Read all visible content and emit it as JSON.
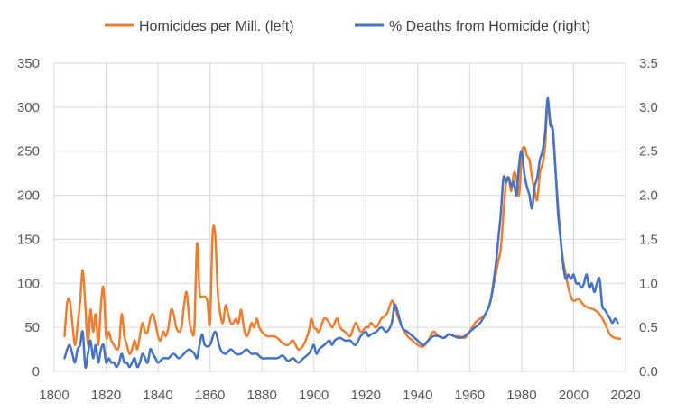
{
  "chart_data": {
    "type": "line",
    "title": "",
    "xlabel": "",
    "ylabel": "",
    "y2label": "",
    "xlim": [
      1800,
      2020
    ],
    "ylim": [
      0,
      350
    ],
    "y2lim": [
      0,
      3.5
    ],
    "grid": "vertical and horizontal",
    "legend_position": "top",
    "x_ticks": [
      "1800",
      "1820",
      "1840",
      "1860",
      "1880",
      "1900",
      "1920",
      "1940",
      "1960",
      "1980",
      "2000",
      "2020"
    ],
    "y_ticks_left": [
      "0",
      "50",
      "100",
      "150",
      "200",
      "250",
      "300",
      "350"
    ],
    "y_ticks_right": [
      "0.0",
      "0.5",
      "1.0",
      "1.5",
      "2.0",
      "2.5",
      "3.0",
      "3.5"
    ],
    "colors": {
      "homicides": "#ed7d31",
      "deaths": "#4472c4",
      "grid": "#d9d9d9",
      "axis_text": "#595959"
    },
    "series": [
      {
        "name": "Homicides per Mill. (left)",
        "axis": "left",
        "color": "#ed7d31",
        "x": [
          1804,
          1805,
          1806,
          1807,
          1808,
          1809,
          1810,
          1811,
          1812,
          1813,
          1814,
          1815,
          1816,
          1817,
          1818,
          1819,
          1820,
          1821,
          1822,
          1823,
          1824,
          1825,
          1826,
          1827,
          1828,
          1829,
          1830,
          1831,
          1832,
          1833,
          1834,
          1835,
          1836,
          1837,
          1838,
          1839,
          1840,
          1841,
          1842,
          1843,
          1844,
          1845,
          1846,
          1847,
          1848,
          1849,
          1850,
          1851,
          1852,
          1853,
          1854,
          1855,
          1856,
          1857,
          1858,
          1859,
          1860,
          1861,
          1862,
          1863,
          1864,
          1865,
          1866,
          1867,
          1868,
          1869,
          1870,
          1871,
          1872,
          1873,
          1874,
          1875,
          1876,
          1877,
          1878,
          1879,
          1880,
          1882,
          1884,
          1886,
          1888,
          1890,
          1892,
          1894,
          1896,
          1898,
          1899,
          1900,
          1901,
          1902,
          1904,
          1906,
          1907,
          1908,
          1909,
          1910,
          1912,
          1914,
          1916,
          1918,
          1920,
          1921,
          1922,
          1924,
          1926,
          1928,
          1930,
          1931,
          1932,
          1934,
          1936,
          1938,
          1940,
          1942,
          1944,
          1946,
          1948,
          1950,
          1952,
          1954,
          1956,
          1958,
          1960,
          1962,
          1964,
          1966,
          1968,
          1970,
          1971,
          1972,
          1973,
          1974,
          1975,
          1976,
          1977,
          1978,
          1979,
          1980,
          1981,
          1982,
          1983,
          1984,
          1985,
          1986,
          1987,
          1988,
          1989,
          1990,
          1991,
          1992,
          1993,
          1994,
          1995,
          1996,
          1997,
          1998,
          1999,
          2000,
          2002,
          2004,
          2006,
          2008,
          2010,
          2012,
          2014,
          2016,
          2018
        ],
        "values": [
          40,
          78,
          80,
          55,
          30,
          52,
          80,
          115,
          75,
          30,
          70,
          45,
          65,
          30,
          75,
          95,
          40,
          45,
          35,
          30,
          25,
          30,
          65,
          40,
          30,
          20,
          25,
          35,
          25,
          40,
          55,
          45,
          45,
          60,
          65,
          55,
          40,
          35,
          45,
          40,
          50,
          70,
          65,
          50,
          45,
          50,
          75,
          90,
          60,
          45,
          50,
          145,
          90,
          85,
          85,
          80,
          55,
          155,
          155,
          90,
          65,
          55,
          75,
          65,
          55,
          55,
          60,
          55,
          70,
          50,
          40,
          45,
          55,
          50,
          60,
          50,
          45,
          40,
          40,
          38,
          32,
          30,
          35,
          25,
          30,
          45,
          60,
          50,
          48,
          45,
          60,
          55,
          50,
          55,
          60,
          50,
          45,
          40,
          55,
          45,
          50,
          50,
          55,
          50,
          60,
          65,
          80,
          75,
          65,
          50,
          40,
          35,
          30,
          28,
          35,
          45,
          40,
          38,
          42,
          40,
          40,
          38,
          45,
          55,
          60,
          65,
          80,
          110,
          125,
          140,
          180,
          215,
          220,
          205,
          225,
          220,
          200,
          245,
          255,
          245,
          240,
          220,
          205,
          195,
          225,
          235,
          255,
          305,
          285,
          270,
          230,
          190,
          150,
          125,
          110,
          95,
          85,
          80,
          82,
          75,
          72,
          70,
          65,
          55,
          42,
          38,
          37
        ]
      },
      {
        "name": "% Deaths from Homicide (right)",
        "axis": "right",
        "color": "#4472c4",
        "x": [
          1804,
          1805,
          1806,
          1807,
          1808,
          1809,
          1810,
          1811,
          1812,
          1813,
          1814,
          1815,
          1816,
          1817,
          1818,
          1819,
          1820,
          1821,
          1822,
          1823,
          1824,
          1825,
          1826,
          1827,
          1828,
          1829,
          1830,
          1831,
          1832,
          1833,
          1834,
          1835,
          1836,
          1837,
          1838,
          1839,
          1840,
          1842,
          1844,
          1846,
          1848,
          1850,
          1852,
          1854,
          1855,
          1856,
          1857,
          1858,
          1860,
          1862,
          1864,
          1866,
          1868,
          1870,
          1872,
          1874,
          1876,
          1878,
          1880,
          1882,
          1884,
          1886,
          1888,
          1890,
          1892,
          1894,
          1896,
          1898,
          1899,
          1900,
          1901,
          1902,
          1904,
          1906,
          1907,
          1908,
          1910,
          1912,
          1914,
          1916,
          1918,
          1920,
          1921,
          1922,
          1924,
          1926,
          1928,
          1930,
          1931,
          1932,
          1934,
          1936,
          1938,
          1940,
          1942,
          1944,
          1946,
          1948,
          1950,
          1952,
          1954,
          1956,
          1958,
          1960,
          1962,
          1964,
          1966,
          1968,
          1970,
          1971,
          1972,
          1973,
          1974,
          1975,
          1976,
          1977,
          1978,
          1979,
          1980,
          1981,
          1982,
          1983,
          1984,
          1985,
          1986,
          1987,
          1988,
          1989,
          1990,
          1991,
          1992,
          1993,
          1994,
          1995,
          1996,
          1997,
          1998,
          1999,
          2000,
          2001,
          2002,
          2003,
          2004,
          2005,
          2006,
          2007,
          2008,
          2009,
          2010,
          2011,
          2012,
          2013,
          2014,
          2015,
          2016,
          2017
        ],
        "values": [
          0.15,
          0.25,
          0.3,
          0.2,
          0.1,
          0.25,
          0.3,
          0.45,
          0.05,
          0.2,
          0.35,
          0.15,
          0.3,
          0.1,
          0.25,
          0.3,
          0.1,
          0.15,
          0.1,
          0.1,
          0.05,
          0.1,
          0.2,
          0.1,
          0.1,
          0.05,
          0.1,
          0.15,
          0.05,
          0.1,
          0.2,
          0.15,
          0.1,
          0.25,
          0.2,
          0.15,
          0.1,
          0.15,
          0.15,
          0.2,
          0.15,
          0.2,
          0.25,
          0.2,
          0.15,
          0.3,
          0.42,
          0.3,
          0.3,
          0.45,
          0.25,
          0.2,
          0.25,
          0.2,
          0.2,
          0.25,
          0.2,
          0.2,
          0.15,
          0.15,
          0.15,
          0.15,
          0.18,
          0.12,
          0.15,
          0.1,
          0.15,
          0.2,
          0.25,
          0.3,
          0.2,
          0.25,
          0.3,
          0.35,
          0.3,
          0.35,
          0.38,
          0.35,
          0.35,
          0.3,
          0.4,
          0.45,
          0.4,
          0.42,
          0.45,
          0.5,
          0.45,
          0.55,
          0.75,
          0.7,
          0.5,
          0.45,
          0.4,
          0.35,
          0.3,
          0.35,
          0.4,
          0.4,
          0.38,
          0.42,
          0.4,
          0.38,
          0.4,
          0.45,
          0.5,
          0.55,
          0.65,
          0.8,
          1.2,
          1.5,
          1.8,
          2.2,
          2.15,
          2.2,
          2.1,
          2.15,
          2.0,
          2.35,
          2.5,
          2.25,
          2.1,
          2.0,
          1.85,
          2.1,
          2.2,
          2.4,
          2.5,
          2.7,
          3.1,
          2.8,
          2.75,
          2.3,
          1.8,
          1.5,
          1.2,
          1.05,
          1.1,
          1.05,
          1.1,
          1.0,
          1.0,
          0.95,
          1.0,
          1.1,
          0.95,
          1.0,
          0.9,
          1.0,
          1.05,
          0.75,
          0.7,
          0.65,
          0.6,
          0.55,
          0.6,
          0.55
        ]
      }
    ]
  }
}
